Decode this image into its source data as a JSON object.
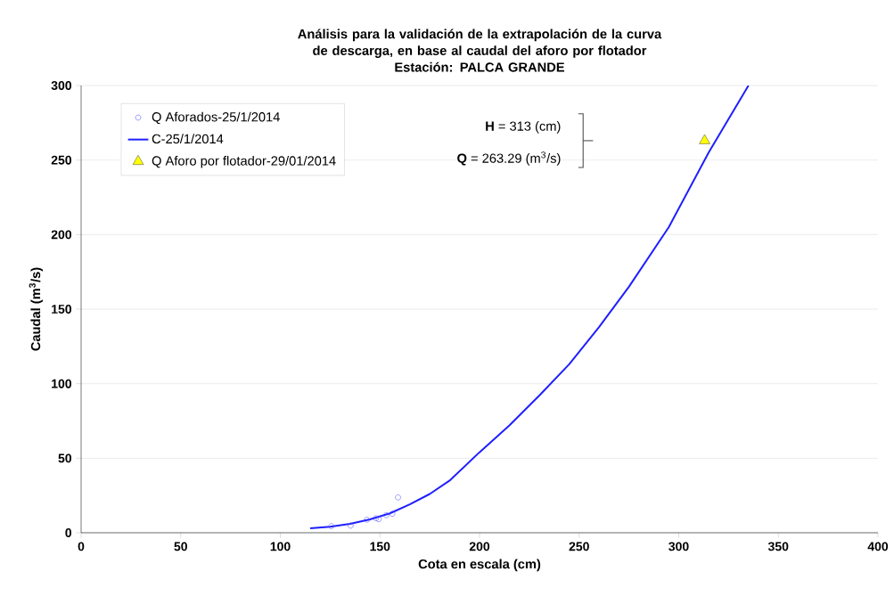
{
  "chart_data": {
    "type": "scatter",
    "title": "Análisis para la validación de la extrapolación de la curva de descarga, en base al caudal del aforo por flotador",
    "subtitle": "Estación: PALCA GRANDE",
    "xlabel": "Cota en escala (cm)",
    "ylabel": "Caudal (m$^{3}$/s)",
    "xlim": [
      0,
      400
    ],
    "xticks": [
      0,
      50,
      100,
      150,
      200,
      250,
      300,
      350,
      400
    ],
    "ylim": [
      0,
      300
    ],
    "yticks": [
      0,
      50,
      100,
      150,
      200,
      250,
      300
    ],
    "grid": "y",
    "legend": "top left",
    "series": [
      {
        "name": "Q Aforados-25/1/2014",
        "marker": "circle",
        "color": "#4a4aff",
        "x": [
          125.6,
          135.3,
          143.5,
          148,
          149.4,
          153.2,
          156.2,
          159.1
        ],
        "values": [
          4.4,
          4.8,
          8.8,
          9.7,
          9.1,
          11.8,
          12.7,
          23.7
        ]
      },
      {
        "name": "C-25/1/2014",
        "type": "line",
        "marker": "none",
        "line_style": "solid",
        "color": "#1f1fff",
        "x": [
          115,
          125,
          135,
          145,
          155,
          165,
          175,
          185,
          200,
          215,
          230,
          245,
          260,
          275,
          295,
          315,
          335
        ],
        "values": [
          3,
          4,
          6,
          9,
          13,
          19,
          26,
          35,
          54,
          72,
          92,
          113,
          138,
          165,
          205,
          255,
          300
        ]
      },
      {
        "name": "Q Aforo por flotador-29/01/2014",
        "type": "scatter",
        "marker": "triangle",
        "color": "#ffff00",
        "x": [
          313
        ],
        "values": [
          263
        ]
      }
    ],
    "annotations": [
      "**H** = 313 (cm)",
      "**Q** = 263.29 (m$^{3}$/s)"
    ]
  }
}
